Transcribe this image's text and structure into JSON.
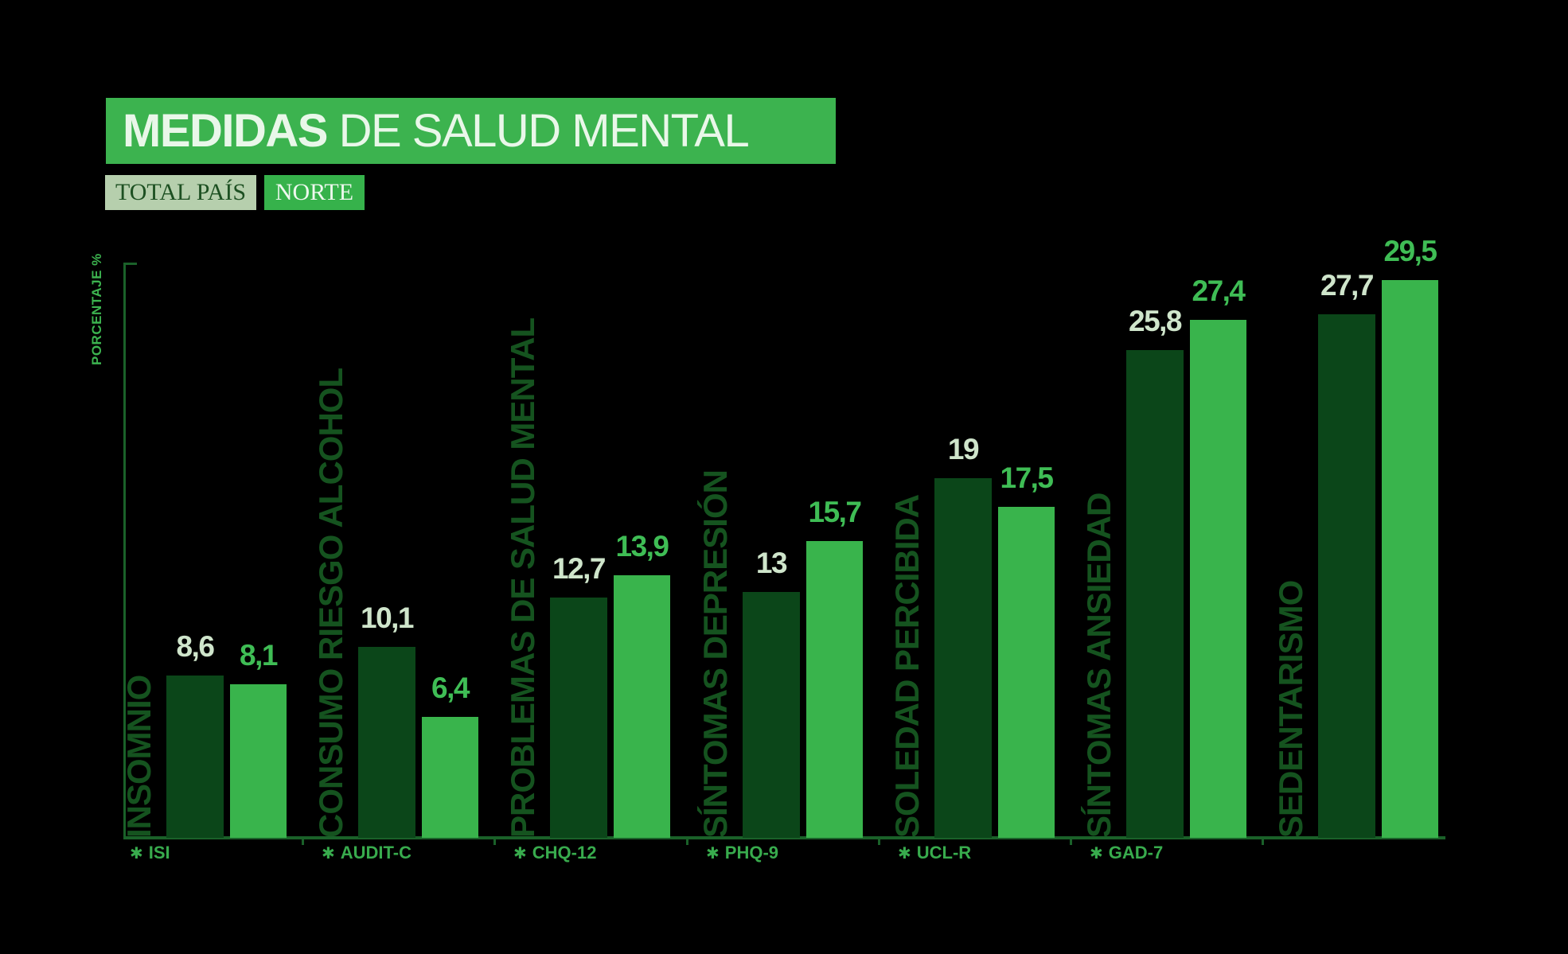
{
  "title": {
    "bold": "MEDIDAS",
    "rest": " DE SALUD MENTAL"
  },
  "legend": {
    "total_pais": "TOTAL PAÍS",
    "norte": "NORTE"
  },
  "y_axis": {
    "label": "PORCENTAJE %"
  },
  "icons": {
    "footnote_star": "✱"
  },
  "colors": {
    "background": "#000000",
    "banner_bg": "#3cb34f",
    "title_text": "#e9f7e9",
    "legend_total_bg": "#b6cfad",
    "legend_total_text": "#1d5022",
    "legend_norte_bg": "#36b24b",
    "legend_norte_text": "#eef8ee",
    "axis": "#1a6129",
    "y_axis_label_text": "#3cb34f",
    "bar_total_pais": "#0b4619",
    "bar_norte": "#39b44c",
    "category_label_text": "#15531f",
    "value_label_total": "#cfe5cb",
    "value_label_norte": "#3fbd55",
    "footnote_text": "#38ab4d"
  },
  "chart_data": {
    "type": "bar",
    "title": "MEDIDAS DE SALUD MENTAL",
    "ylabel": "PORCENTAJE %",
    "ylim": [
      0,
      30.4
    ],
    "grid": false,
    "legend_position": "top-left",
    "value_decimal_separator": ",",
    "categories": [
      "INSOMNIO",
      "CONSUMO RIESGO ALCOHOL",
      "PROBLEMAS DE SALUD MENTAL",
      "SÍNTOMAS DEPRESIÓN",
      "SOLEDAD PERCIBIDA",
      "SÍNTOMAS ANSIEDAD",
      "SEDENTARISMO"
    ],
    "footnotes": [
      "ISI",
      "AUDIT-C",
      "CHQ-12",
      "PHQ-9",
      "UCL-R",
      "GAD-7",
      ""
    ],
    "series": [
      {
        "name": "TOTAL PAÍS",
        "values": [
          8.6,
          10.1,
          12.7,
          13,
          19,
          25.8,
          27.7
        ],
        "labels": [
          "8,6",
          "10,1",
          "12,7",
          "13",
          "19",
          "25,8",
          "27,7"
        ]
      },
      {
        "name": "NORTE",
        "values": [
          8.1,
          6.4,
          13.9,
          15.7,
          17.5,
          27.4,
          29.5
        ],
        "labels": [
          "8,1",
          "6,4",
          "13,9",
          "15,7",
          "17,5",
          "27,4",
          "29,5"
        ]
      }
    ]
  }
}
